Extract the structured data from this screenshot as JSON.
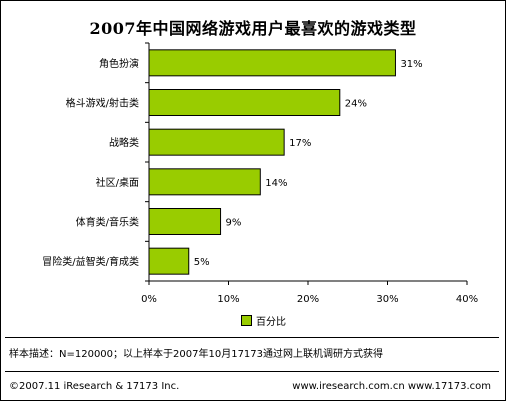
{
  "chart_data": {
    "type": "bar",
    "orientation": "horizontal",
    "title": "2007年中国网络游戏用户最喜欢的游戏类型",
    "categories": [
      "角色扮演",
      "格斗游戏/射击类",
      "战略类",
      "社区/桌面",
      "体育类/音乐类",
      "冒险类/益智类/育成类"
    ],
    "series": [
      {
        "name": "百分比",
        "values": [
          31,
          24,
          17,
          14,
          9,
          5
        ]
      }
    ],
    "value_labels": [
      "31%",
      "24%",
      "17%",
      "14%",
      "9%",
      "5%"
    ],
    "x_ticks": [
      0,
      10,
      20,
      30,
      40
    ],
    "x_tick_labels": [
      "0%",
      "10%",
      "20%",
      "30%",
      "40%"
    ],
    "xlim": [
      0,
      40
    ],
    "grid": false,
    "legend_position": "bottom-center",
    "bar_color": "#99cc00",
    "text_color": "#000000"
  },
  "notes": {
    "sample": "样本描述：N=120000；以上样本于2007年10月17173通过网上联机调研方式获得"
  },
  "footer": {
    "copyright": "©2007.11 iResearch & 17173 Inc.",
    "sites": "www.iresearch.com.cn   www.17173.com"
  }
}
